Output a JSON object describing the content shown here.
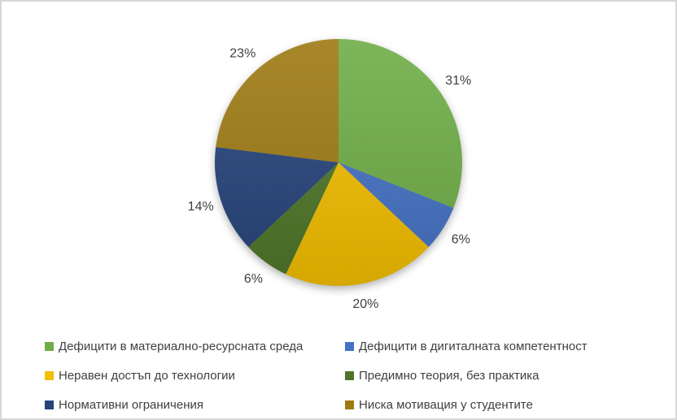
{
  "frame": {
    "background": "#ffffff",
    "border_color": "#d6d6d6"
  },
  "chart_data": {
    "type": "pie",
    "title": "",
    "direction": "clockwise",
    "start_angle_deg": 0,
    "label_position": "outside",
    "label_color": "#404040",
    "legend_position": "bottom",
    "legend_columns": 2,
    "slices": [
      {
        "label": "Дефицити в материално-ресурсната среда",
        "value": 31,
        "display": "31%",
        "color": "#6FAD47"
      },
      {
        "label": "Дефицити в дигиталната компетентност",
        "value": 6,
        "display": "6%",
        "color": "#4472C4"
      },
      {
        "label": "Неравен достъп до технологии",
        "value": 20,
        "display": "20%",
        "color": "#F2BE00"
      },
      {
        "label": "Предимно теория, без практика",
        "value": 6,
        "display": "6%",
        "color": "#4E7628"
      },
      {
        "label": "Нормативни ограничения",
        "value": 14,
        "display": "14%",
        "color": "#26437A"
      },
      {
        "label": "Ниска мотивация у студентите",
        "value": 23,
        "display": "23%",
        "color": "#9E7A13"
      }
    ]
  }
}
